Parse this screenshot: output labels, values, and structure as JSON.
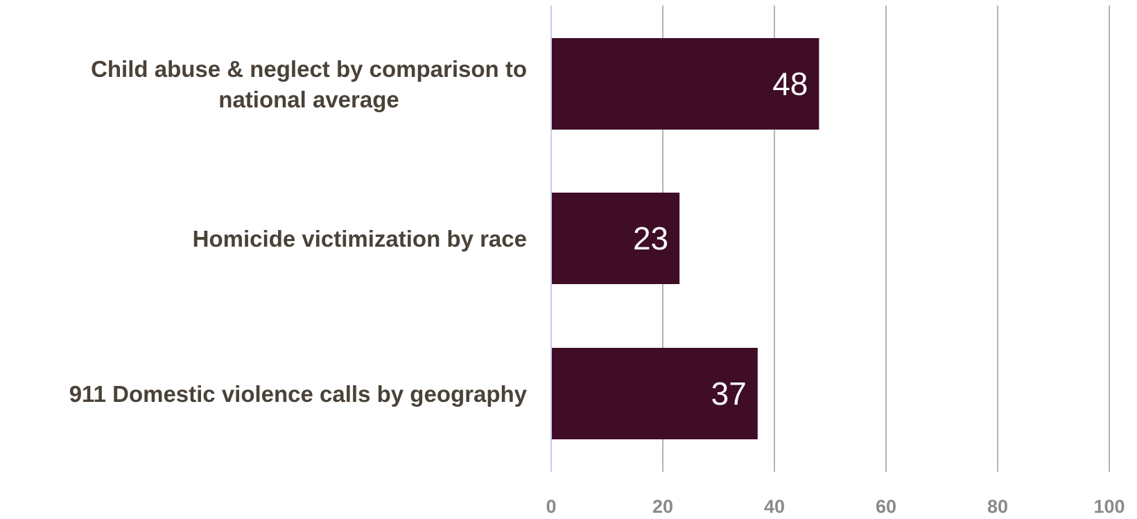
{
  "chart_data": {
    "type": "bar",
    "orientation": "horizontal",
    "categories": [
      [
        "Child abuse & neglect by comparison to",
        "national average"
      ],
      [
        "Homicide victimization by race"
      ],
      [
        "911 Domestic violence calls by geography"
      ]
    ],
    "values": [
      48,
      23,
      37
    ],
    "data_labels": [
      "48",
      "23",
      "37"
    ],
    "xlim": [
      0,
      100
    ],
    "x_ticks": [
      "0",
      "20",
      "40",
      "60",
      "80",
      "100"
    ],
    "grid": true,
    "legend": "none",
    "title": "",
    "xlabel": "",
    "ylabel": "",
    "colors": {
      "bar": "#3f0d26",
      "gridline": "#b3b3b3",
      "axis_line": "#c5cde3",
      "category_text": "#4a4238",
      "tick_text": "#8a8a8a",
      "data_label_text": "#ffffff"
    }
  }
}
